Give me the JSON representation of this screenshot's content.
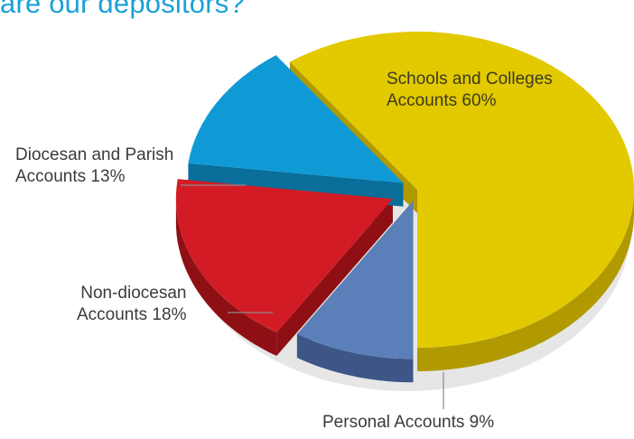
{
  "title": "are our depositors?",
  "chart_data": {
    "type": "pie",
    "slices": [
      {
        "label_line1": "Schools and Colleges",
        "label_line2": "Accounts 60%",
        "value": 60,
        "color": "#e2c900",
        "side_color": "#b09a00"
      },
      {
        "label_line1": "Personal Accounts 9%",
        "label_line2": "",
        "value": 9,
        "color": "#5b7fb9",
        "side_color": "#3d5687"
      },
      {
        "label_line1": "Non-diocesan",
        "label_line2": "Accounts 18%",
        "value": 18,
        "color": "#d21b24",
        "side_color": "#8e0f14"
      },
      {
        "label_line1": "Diocesan and Parish",
        "label_line2": "Accounts 13%",
        "value": 13,
        "color": "#0f9ad6",
        "side_color": "#0a6e9a"
      }
    ]
  }
}
